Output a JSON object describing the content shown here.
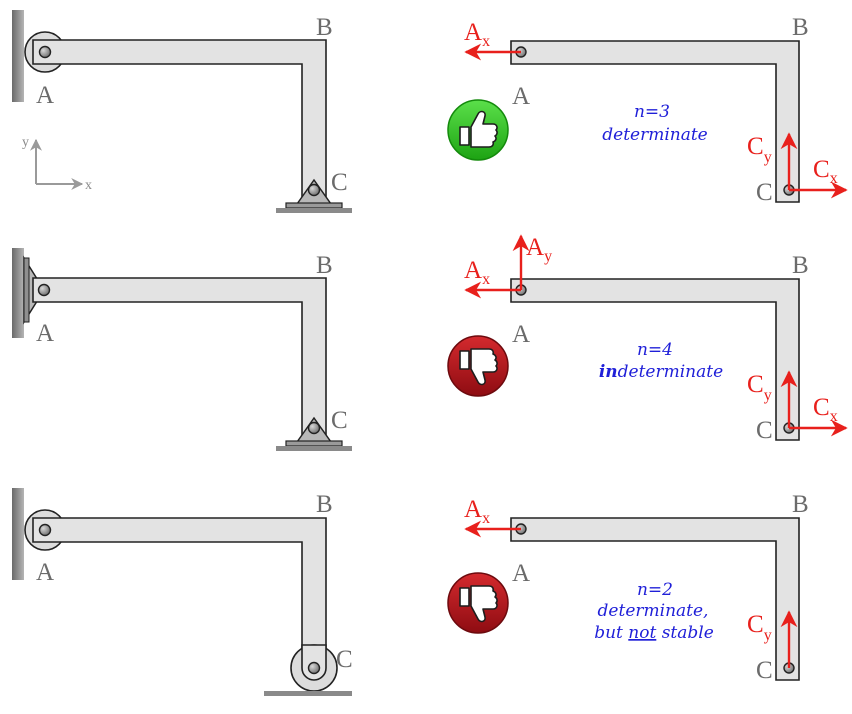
{
  "colors": {
    "beam_fill": "#e3e3e3",
    "beam_stroke": "#222222",
    "force": "#e8201c",
    "note": "#1f1fd8",
    "thumb_up": "#33cc22",
    "thumb_down": "#b8141c",
    "label": "#6b6b6b"
  },
  "labels": {
    "a": "A",
    "b": "B",
    "c": "C"
  },
  "axes": {
    "x": "x",
    "y": "y"
  },
  "forces": {
    "ax": {
      "main": "A",
      "sub": "x"
    },
    "ay": {
      "main": "A",
      "sub": "y"
    },
    "cx": {
      "main": "C",
      "sub": "x"
    },
    "cy": {
      "main": "C",
      "sub": "y"
    }
  },
  "cases": [
    {
      "left_support_a": "pin-in-slot",
      "support_c": "pin",
      "verdict_icon": "thumbs-up-icon",
      "note_lines": [
        {
          "text": "n=3",
          "emphasis": ""
        },
        {
          "text": "determinate",
          "emphasis": ""
        }
      ]
    },
    {
      "left_support_a": "pin",
      "support_c": "pin",
      "verdict_icon": "thumbs-down-icon",
      "note_lines": [
        {
          "text": "n=4",
          "emphasis": ""
        },
        {
          "bold": "in",
          "text": "determinate"
        }
      ]
    },
    {
      "left_support_a": "pin-in-slot",
      "support_c": "roller",
      "verdict_icon": "thumbs-down-icon",
      "note_lines": [
        {
          "text": "n=2"
        },
        {
          "text": "determinate,"
        },
        {
          "text": "but ",
          "underlined": "not",
          "after": " stable"
        }
      ]
    }
  ]
}
